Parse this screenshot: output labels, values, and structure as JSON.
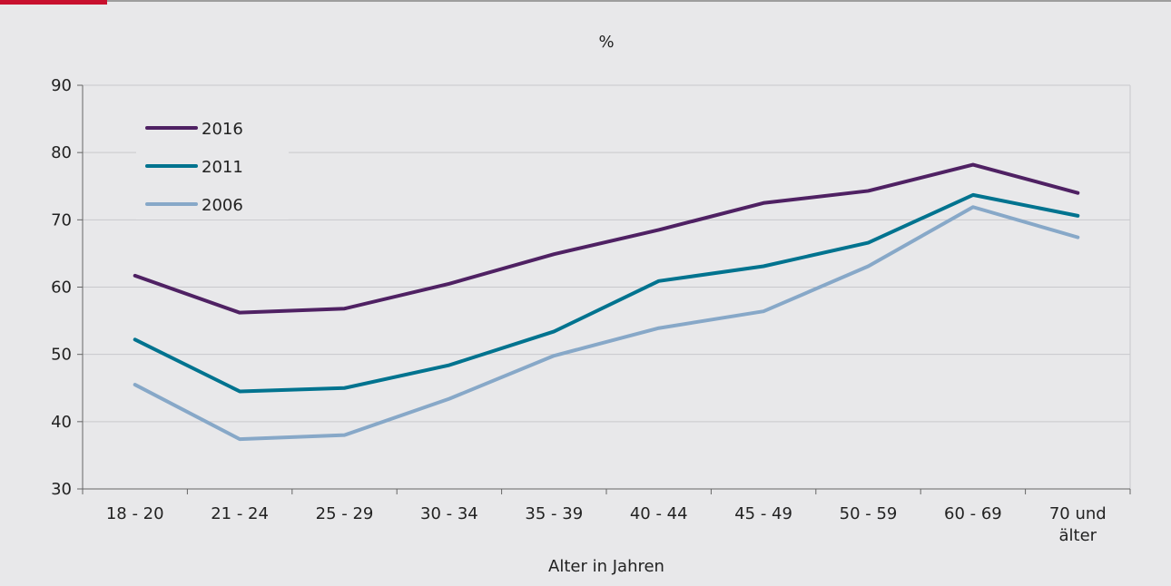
{
  "colors": {
    "accent": "#c8102e",
    "background": "#e8e8ea",
    "series_2016": "#4f2163",
    "series_2011": "#00738f",
    "series_2006": "#87a8c8"
  },
  "chart_data": {
    "type": "line",
    "title": "%",
    "xlabel": "Alter in Jahren",
    "ylabel": "",
    "ylim": [
      30,
      90
    ],
    "yticks": [
      30,
      40,
      50,
      60,
      70,
      80,
      90
    ],
    "grid": true,
    "legend": "top-left",
    "categories": [
      "18 - 20",
      "21 - 24",
      "25 - 29",
      "30 - 34",
      "35 - 39",
      "40 - 44",
      "45 - 49",
      "50 - 59",
      "60 - 69",
      "70 und älter"
    ],
    "series": [
      {
        "name": "2016",
        "color": "#4f2163",
        "values": [
          61.7,
          56.2,
          56.8,
          60.5,
          64.9,
          68.5,
          72.5,
          74.3,
          78.2,
          74.0
        ]
      },
      {
        "name": "2011",
        "color": "#00738f",
        "values": [
          52.2,
          44.5,
          45.0,
          48.4,
          53.4,
          60.9,
          63.1,
          66.6,
          73.7,
          70.6
        ]
      },
      {
        "name": "2006",
        "color": "#87a8c8",
        "values": [
          45.5,
          37.4,
          38.0,
          43.4,
          49.8,
          53.9,
          56.4,
          63.1,
          71.9,
          67.4
        ]
      }
    ]
  }
}
